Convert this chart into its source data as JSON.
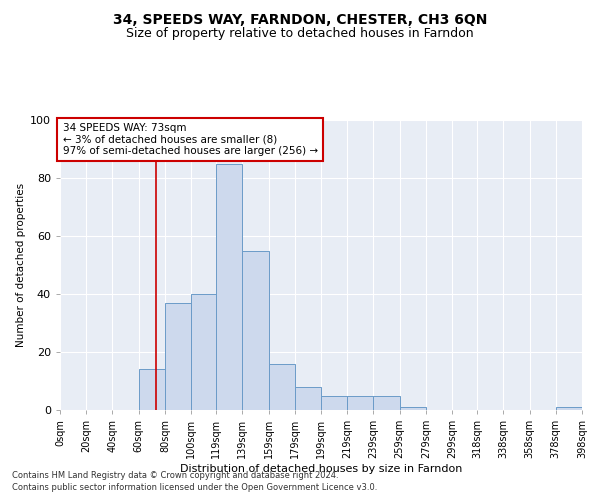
{
  "title1": "34, SPEEDS WAY, FARNDON, CHESTER, CH3 6QN",
  "title2": "Size of property relative to detached houses in Farndon",
  "xlabel": "Distribution of detached houses by size in Farndon",
  "ylabel": "Number of detached properties",
  "footnote1": "Contains HM Land Registry data © Crown copyright and database right 2024.",
  "footnote2": "Contains public sector information licensed under the Open Government Licence v3.0.",
  "annotation_line1": "34 SPEEDS WAY: 73sqm",
  "annotation_line2": "← 3% of detached houses are smaller (8)",
  "annotation_line3": "97% of semi-detached houses are larger (256) →",
  "bar_color": "#cdd9ed",
  "bar_edge_color": "#6b9bc8",
  "bg_color": "#e8edf5",
  "red_line_x": 73,
  "annotation_box_color": "#ffffff",
  "annotation_box_edge": "#cc0000",
  "bin_edges": [
    0,
    20,
    40,
    60,
    80,
    100,
    119,
    139,
    159,
    179,
    199,
    219,
    239,
    259,
    279,
    299,
    318,
    338,
    358,
    378,
    398
  ],
  "bin_labels": [
    "0sqm",
    "20sqm",
    "40sqm",
    "60sqm",
    "80sqm",
    "100sqm",
    "119sqm",
    "139sqm",
    "159sqm",
    "179sqm",
    "199sqm",
    "219sqm",
    "239sqm",
    "259sqm",
    "279sqm",
    "299sqm",
    "318sqm",
    "338sqm",
    "358sqm",
    "378sqm",
    "398sqm"
  ],
  "bar_heights": [
    0,
    0,
    0,
    14,
    37,
    40,
    85,
    55,
    16,
    8,
    5,
    5,
    5,
    1,
    0,
    0,
    0,
    0,
    0,
    1
  ],
  "ylim": [
    0,
    100
  ],
  "yticks": [
    0,
    20,
    40,
    60,
    80,
    100
  ],
  "title1_fontsize": 10,
  "title2_fontsize": 9,
  "xlabel_fontsize": 8,
  "ylabel_fontsize": 7.5,
  "tick_fontsize": 7,
  "footnote_fontsize": 6,
  "ann_fontsize": 7.5
}
